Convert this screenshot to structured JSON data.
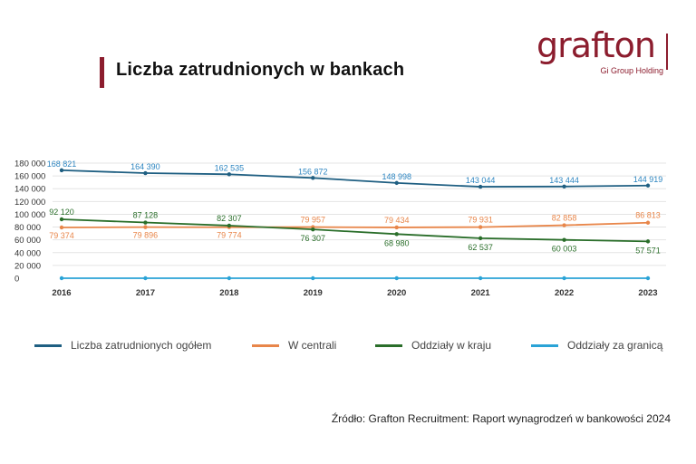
{
  "title": "Liczba zatrudnionych w bankach",
  "logo": {
    "word": "grafton",
    "sub": "Gi Group Holding",
    "color": "#8c1d2e"
  },
  "source": "Źródło: Grafton Recruitment: Raport wynagrodzeń w bankowości 2024",
  "chart_data": {
    "type": "line",
    "x": [
      "2016",
      "2017",
      "2018",
      "2019",
      "2020",
      "2021",
      "2022",
      "2023"
    ],
    "ylim": [
      0,
      180000
    ],
    "yticks": [
      "0",
      "20 000",
      "40 000",
      "60 000",
      "80 000",
      "100 000",
      "120 000",
      "140 000",
      "160 000",
      "180 000"
    ],
    "grid": true,
    "legend_position": "bottom",
    "series": [
      {
        "name": "Liczba zatrudnionych ogółem",
        "color": "#1f5f82",
        "values": [
          168821,
          164390,
          162535,
          156872,
          148998,
          143044,
          143444,
          144919
        ],
        "labels": [
          "168 821",
          "164 390",
          "162 535",
          "156 872",
          "148 998",
          "143 044",
          "143 444",
          "144 919"
        ],
        "label_color": "#2e86c1"
      },
      {
        "name": "W centrali",
        "color": "#e8864a",
        "values": [
          79374,
          79896,
          79774,
          79957,
          79434,
          79931,
          82858,
          86813
        ],
        "labels": [
          "79 374",
          "79 896",
          "79 774",
          "79 957",
          "79 434",
          "79 931",
          "82 858",
          "86 813"
        ],
        "label_color": "#e8864a"
      },
      {
        "name": "Oddziały w kraju",
        "color": "#2a6e2a",
        "values": [
          92120,
          87128,
          82307,
          76307,
          68980,
          62537,
          60003,
          57571
        ],
        "labels": [
          "92 120",
          "87 128",
          "82 307",
          "76 307",
          "68 980",
          "62 537",
          "60 003",
          "57 571"
        ],
        "label_color": "#2a6e2a"
      },
      {
        "name": "Oddziały za granicą",
        "color": "#2aa3d6",
        "values": [
          0,
          0,
          0,
          0,
          0,
          0,
          0,
          0
        ],
        "labels": [],
        "label_color": "#2aa3d6"
      }
    ]
  }
}
